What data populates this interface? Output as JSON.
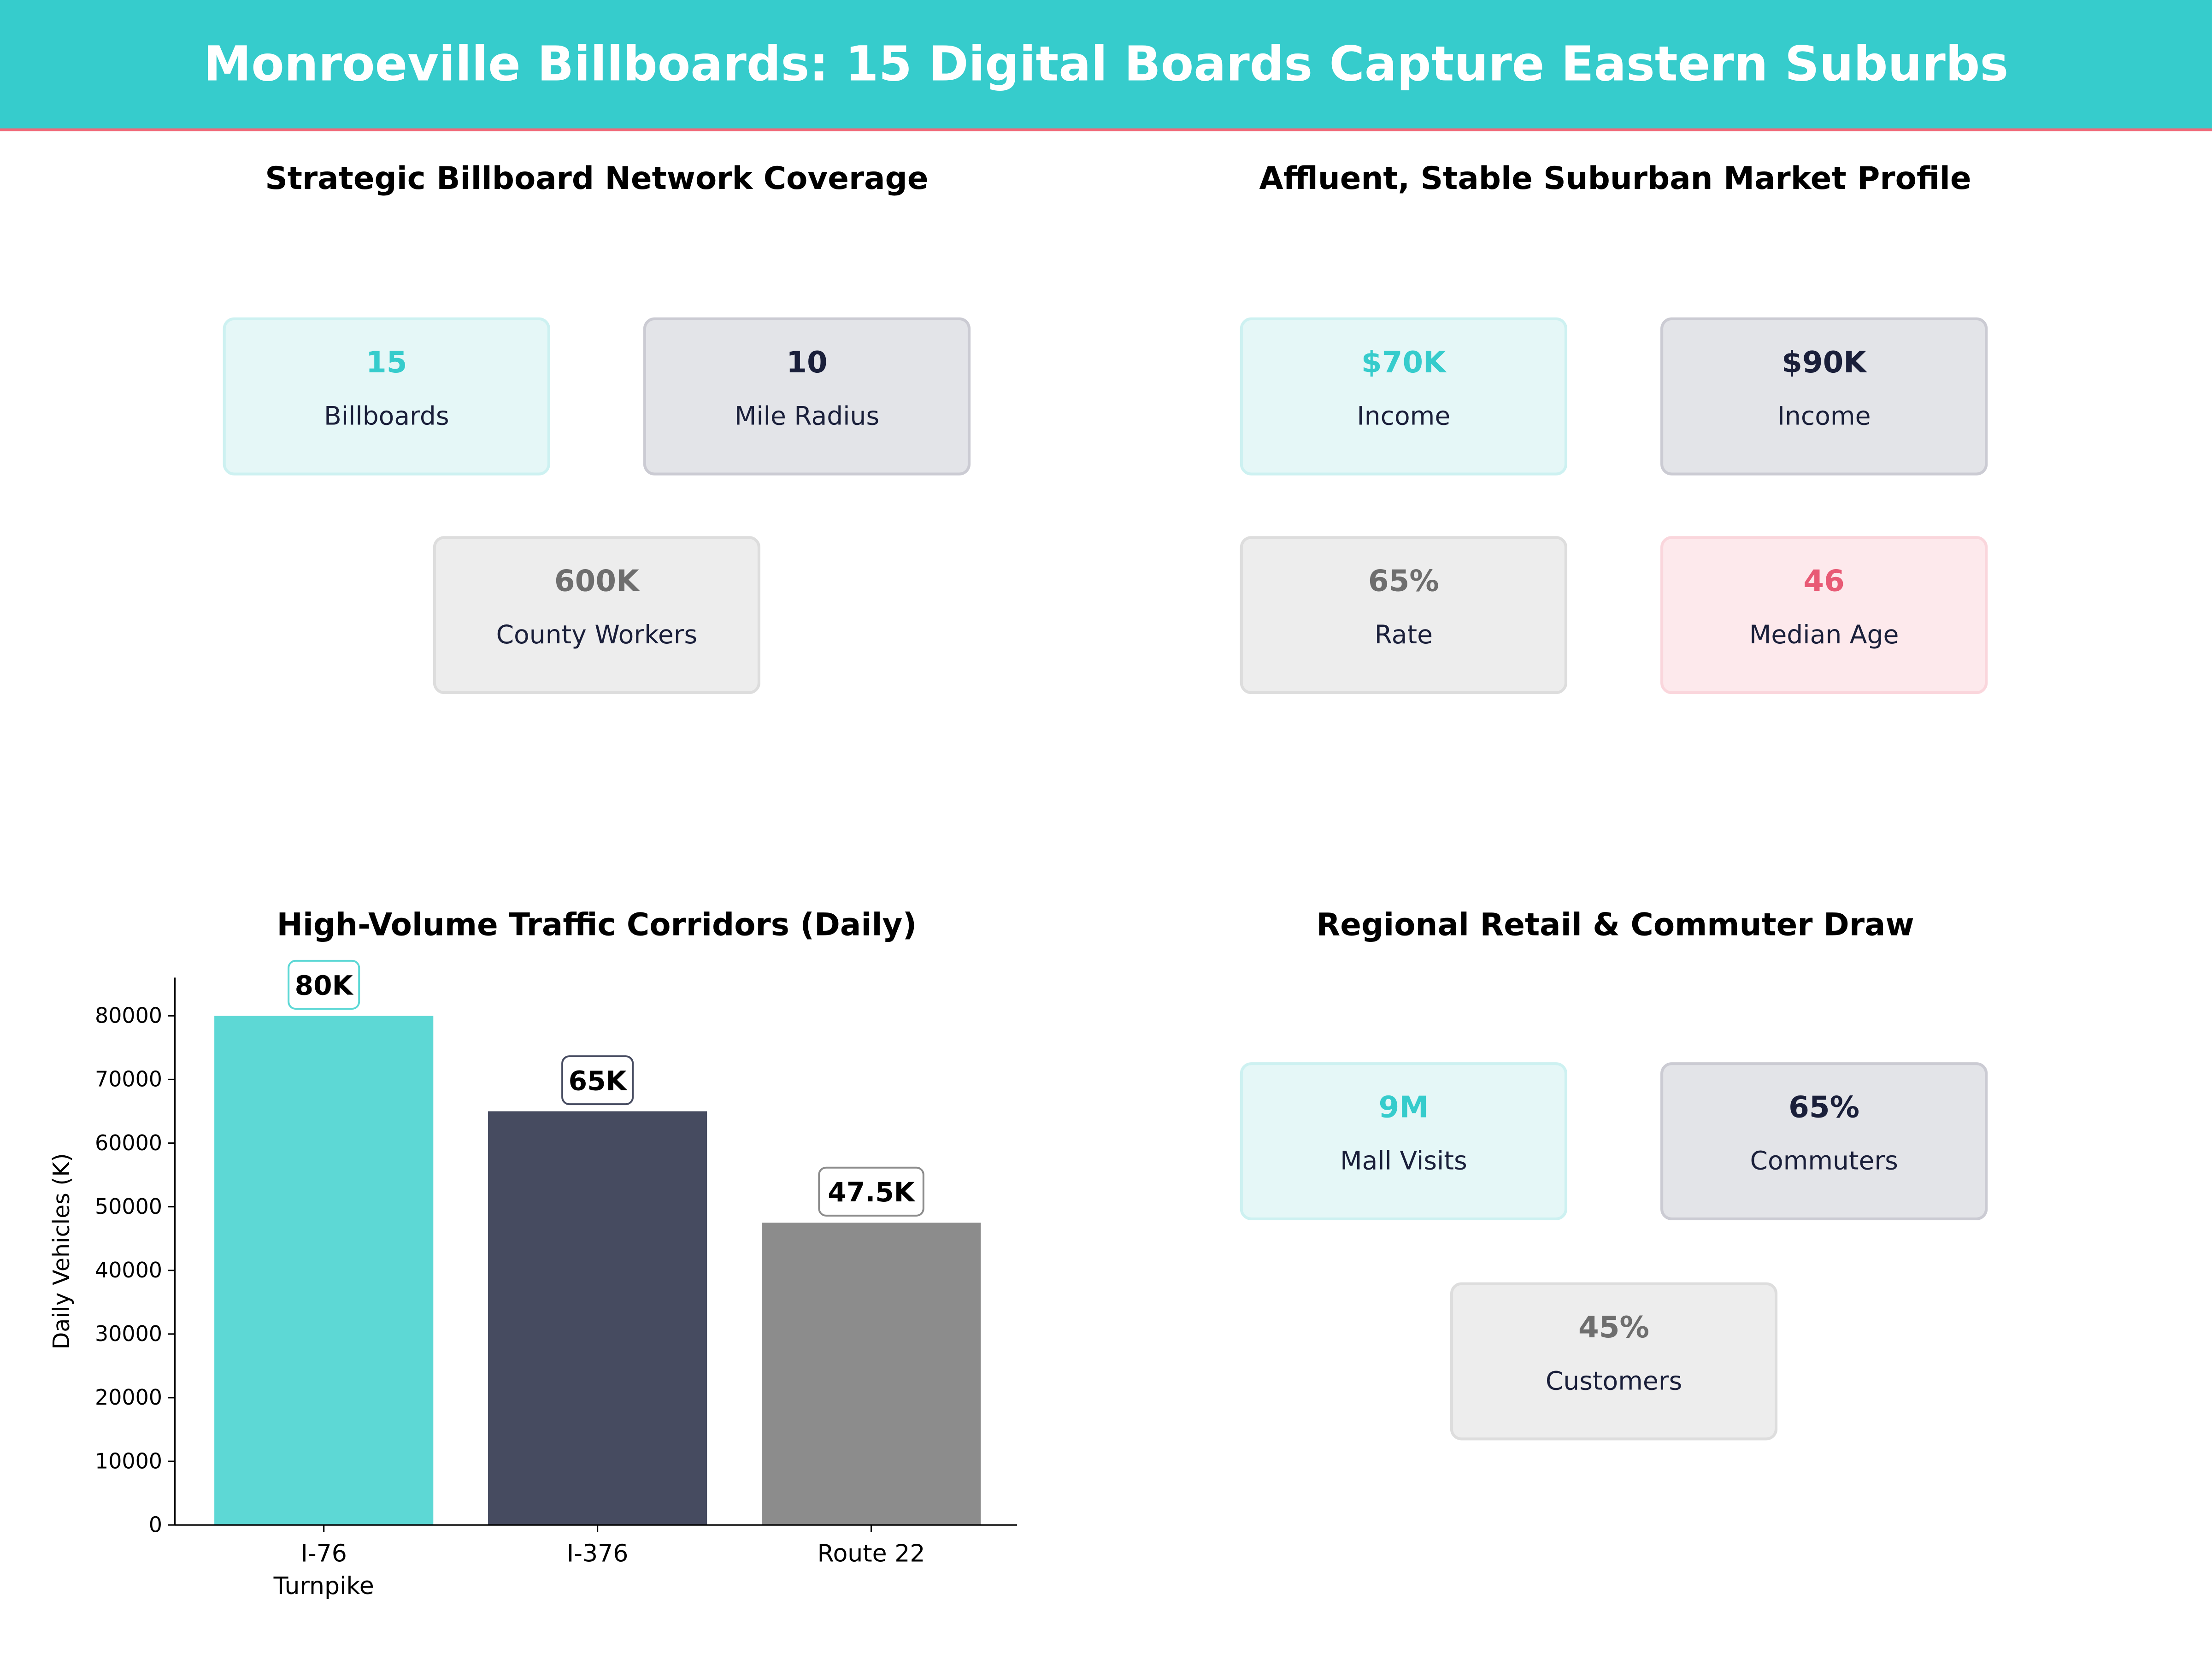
{
  "title": "Monroeville Billboards: 15 Digital Boards Capture Eastern Suburbs",
  "colors": {
    "header": "#36cccc",
    "accent_line": "#f06a7a",
    "teal": "#36cccc",
    "navy": "#1a1f3a",
    "gray": "#6e6e6e",
    "pink": "#e85a75"
  },
  "panels": {
    "coverage": {
      "title": "Strategic Billboard Network Coverage",
      "cards": [
        {
          "value": "15",
          "label": "Billboards",
          "style": "teal"
        },
        {
          "value": "10",
          "label": "Mile Radius",
          "style": "navy"
        },
        {
          "value": "600K",
          "label": "County Workers",
          "style": "gray"
        }
      ]
    },
    "market": {
      "title": "Affluent, Stable Suburban Market Profile",
      "cards": [
        {
          "value": "$70K",
          "label": "Income",
          "style": "teal"
        },
        {
          "value": "$90K",
          "label": "Income",
          "style": "navy"
        },
        {
          "value": "65%",
          "label": "Rate",
          "style": "gray"
        },
        {
          "value": "46",
          "label": "Median Age",
          "style": "pink"
        }
      ]
    },
    "retail": {
      "title": "Regional Retail & Commuter Draw",
      "cards": [
        {
          "value": "9M",
          "label": "Mall Visits",
          "style": "teal"
        },
        {
          "value": "65%",
          "label": "Commuters",
          "style": "navy"
        },
        {
          "value": "45%",
          "label": "Customers",
          "style": "gray"
        }
      ]
    }
  },
  "chart_data": {
    "type": "bar",
    "title": "High-Volume Traffic Corridors (Daily)",
    "xlabel": "",
    "ylabel": "Daily Vehicles (K)",
    "categories": [
      "I-76\nTurnpike",
      "I-376",
      "Route 22"
    ],
    "values": [
      80000,
      65000,
      47500
    ],
    "data_labels": [
      "80K",
      "65K",
      "47.5K"
    ],
    "bar_colors": [
      "#5dd8d5",
      "#464b60",
      "#8c8c8c"
    ],
    "ylim": [
      0,
      86000
    ],
    "yticks": [
      0,
      10000,
      20000,
      30000,
      40000,
      50000,
      60000,
      70000,
      80000
    ],
    "grid": false
  }
}
